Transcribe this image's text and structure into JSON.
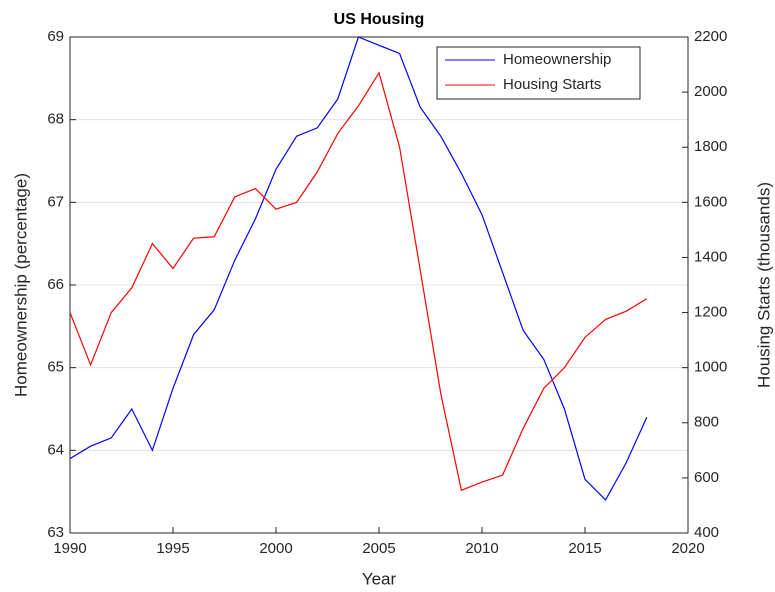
{
  "chart_data": {
    "type": "line",
    "title": "US Housing",
    "xlabel": "Year",
    "ylabel": "Homeownership (percentage)",
    "y2label": "Housing Starts (thousands)",
    "x": [
      1990,
      1991,
      1992,
      1993,
      1994,
      1995,
      1996,
      1997,
      1998,
      1999,
      2000,
      2001,
      2002,
      2003,
      2004,
      2005,
      2006,
      2007,
      2008,
      2009,
      2010,
      2011,
      2012,
      2013,
      2014,
      2015,
      2016,
      2017,
      2018
    ],
    "series": [
      {
        "name": "Homeownership",
        "color": "#0000ff",
        "axis": "y",
        "values": [
          63.9,
          64.05,
          64.15,
          64.5,
          64.0,
          64.75,
          65.4,
          65.7,
          66.3,
          66.8,
          67.4,
          67.8,
          67.9,
          68.25,
          69.0,
          68.9,
          68.8,
          68.15,
          67.8,
          67.35,
          66.85,
          66.15,
          65.45,
          65.1,
          64.5,
          63.65,
          63.4,
          63.85,
          64.4
        ]
      },
      {
        "name": "Housing Starts",
        "color": "#ff0000",
        "axis": "y2",
        "values": [
          1200,
          1010,
          1200,
          1290,
          1450,
          1360,
          1470,
          1475,
          1620,
          1650,
          1575,
          1600,
          1710,
          1850,
          1950,
          2070,
          1800,
          1355,
          905,
          555,
          585,
          610,
          780,
          925,
          1000,
          1110,
          1175,
          1205,
          1250
        ]
      }
    ],
    "xlim": [
      1990,
      2020
    ],
    "xticks": [
      1990,
      1995,
      2000,
      2005,
      2010,
      2015,
      2020
    ],
    "ylim": [
      63,
      69
    ],
    "yticks": [
      63,
      64,
      65,
      66,
      67,
      68,
      69
    ],
    "y2lim": [
      400,
      2200
    ],
    "y2ticks": [
      400,
      600,
      800,
      1000,
      1200,
      1400,
      1600,
      1800,
      2000,
      2200
    ],
    "grid": true,
    "legend": "upper right"
  }
}
